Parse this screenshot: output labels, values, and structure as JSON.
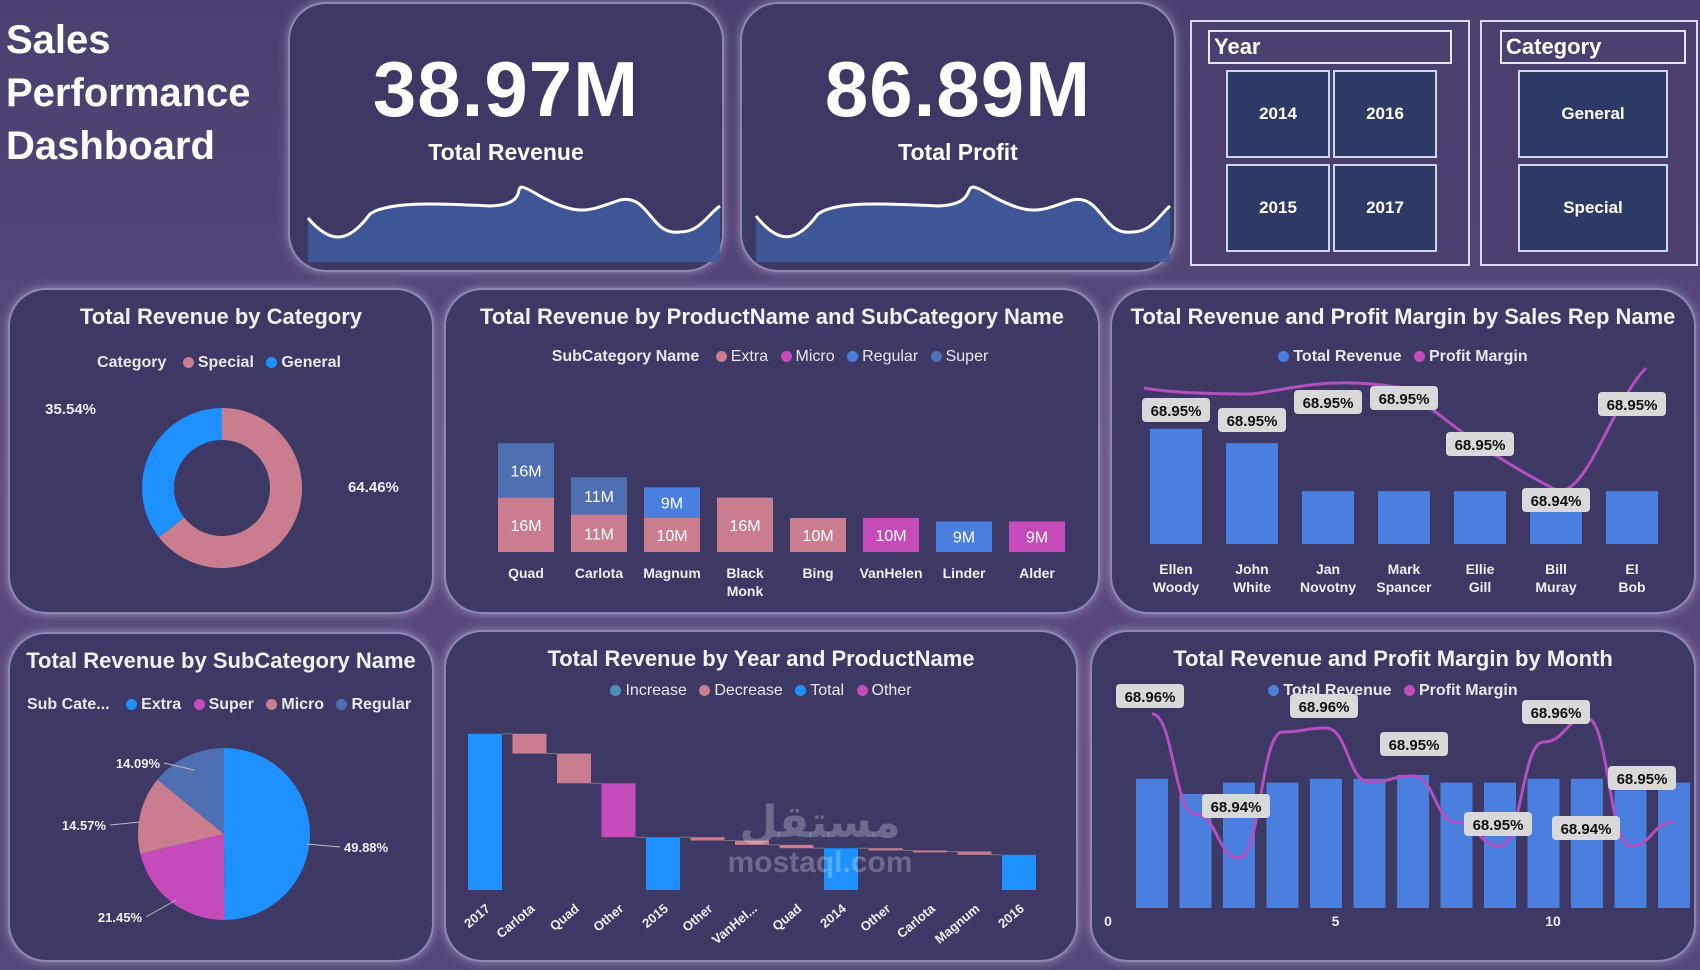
{
  "page_title": [
    "Sales",
    "Performance",
    "Dashboard"
  ],
  "kpis": {
    "revenue": {
      "value": "38.97M",
      "label": "Total Revenue"
    },
    "profit": {
      "value": "86.89M",
      "label": "Total Profit"
    }
  },
  "slicers": {
    "year": {
      "title": "Year",
      "options": [
        "2014",
        "2016",
        "2015",
        "2017"
      ]
    },
    "category": {
      "title": "Category",
      "options": [
        "General",
        "Special"
      ]
    }
  },
  "colors": {
    "bg": "#4a3f6e",
    "card": "#3d3864",
    "blue": "#4a7fe0",
    "bright_blue": "#1e90ff",
    "pink": "#c97d8f",
    "magenta": "#c54bbb",
    "steel": "#4e6fb2",
    "purple_line": "#b34fc0"
  },
  "charts": {
    "category_donut": {
      "title": "Total Revenue by Category",
      "legend_title": "Category",
      "legend": [
        {
          "name": "Special",
          "color": "#c97d8f"
        },
        {
          "name": "General",
          "color": "#1e90ff"
        }
      ]
    },
    "product_sub": {
      "title": "Total Revenue by ProductName and SubCategory Name",
      "legend_title": "SubCategory Name",
      "legend": [
        {
          "name": "Extra",
          "color": "#c97d8f"
        },
        {
          "name": "Micro",
          "color": "#c54bbb"
        },
        {
          "name": "Regular",
          "color": "#4a7fe0"
        },
        {
          "name": "Super",
          "color": "#4e6fb2"
        }
      ]
    },
    "salesrep": {
      "title": "Total Revenue and Profit Margin by Sales Rep Name",
      "legend": [
        {
          "name": "Total Revenue",
          "color": "#4a7fe0"
        },
        {
          "name": "Profit Margin",
          "color": "#c54bbb"
        }
      ]
    },
    "subcat_pie": {
      "title": "Total Revenue by SubCategory Name",
      "legend_title": "Sub Cate...",
      "legend": [
        {
          "name": "Extra",
          "color": "#1e90ff"
        },
        {
          "name": "Super",
          "color": "#c54bbb"
        },
        {
          "name": "Micro",
          "color": "#c97d8f"
        },
        {
          "name": "Regular",
          "color": "#4e6fb2"
        }
      ]
    },
    "waterfall": {
      "title": "Total Revenue by Year and ProductName",
      "legend": [
        {
          "name": "Increase",
          "color": "#4e8fb2"
        },
        {
          "name": "Decrease",
          "color": "#c97d8f"
        },
        {
          "name": "Total",
          "color": "#1e90ff"
        },
        {
          "name": "Other",
          "color": "#c54bbb"
        }
      ]
    },
    "month": {
      "title": "Total Revenue and Profit Margin by Month",
      "legend": [
        {
          "name": "Total Revenue",
          "color": "#4a7fe0"
        },
        {
          "name": "Profit Margin",
          "color": "#c54bbb"
        }
      ]
    }
  },
  "chart_data": [
    {
      "type": "pie",
      "variant": "donut",
      "title": "Total Revenue by Category",
      "slices": [
        {
          "name": "Special",
          "value": 64.46,
          "label": "64.46%"
        },
        {
          "name": "General",
          "value": 35.54,
          "label": "35.54%"
        }
      ]
    },
    {
      "type": "bar",
      "stacked": true,
      "title": "Total Revenue by ProductName and SubCategory Name",
      "categories": [
        "Quad",
        "Carlota",
        "Magnum",
        "Black Monk",
        "Bing",
        "VanHelen",
        "Linder",
        "Alder"
      ],
      "bars": [
        [
          {
            "series": "Extra",
            "value": 16,
            "label": "16M"
          },
          {
            "series": "Super",
            "value": 16,
            "label": "16M"
          }
        ],
        [
          {
            "series": "Extra",
            "value": 11,
            "label": "11M"
          },
          {
            "series": "Super",
            "value": 11,
            "label": "11M"
          }
        ],
        [
          {
            "series": "Extra",
            "value": 10,
            "label": "10M"
          },
          {
            "series": "Regular",
            "value": 9,
            "label": "9M"
          }
        ],
        [
          {
            "series": "Extra",
            "value": 16,
            "label": "16M"
          }
        ],
        [
          {
            "series": "Extra",
            "value": 10,
            "label": "10M"
          }
        ],
        [
          {
            "series": "Micro",
            "value": 10,
            "label": "10M"
          }
        ],
        [
          {
            "series": "Regular",
            "value": 9,
            "label": "9M"
          }
        ],
        [
          {
            "series": "Micro",
            "value": 9,
            "label": "9M"
          }
        ]
      ]
    },
    {
      "type": "bar",
      "combo_line": true,
      "title": "Total Revenue and Profit Margin by Sales Rep Name",
      "categories": [
        "Ellen Woody",
        "John White",
        "Jan Novotny",
        "Mark Spancer",
        "Ellie Gill",
        "Bill Muray",
        "El Bob"
      ],
      "series": [
        {
          "name": "Total Revenue",
          "values": [
            9.6,
            8.4,
            4.4,
            4.4,
            4.4,
            4.3,
            4.4
          ]
        },
        {
          "name": "Profit Margin",
          "values": [
            68.95,
            68.95,
            68.95,
            68.95,
            68.95,
            68.94,
            68.95
          ],
          "labels": [
            "68.95%",
            "68.95%",
            "68.95%",
            "68.95%",
            "68.95%",
            "68.94%",
            "68.95%"
          ]
        }
      ]
    },
    {
      "type": "pie",
      "title": "Total Revenue by SubCategory Name",
      "slices": [
        {
          "name": "Extra",
          "value": 49.88,
          "label": "49.88%"
        },
        {
          "name": "Super",
          "value": 21.45,
          "label": "21.45%"
        },
        {
          "name": "Micro",
          "value": 14.57,
          "label": "14.57%"
        },
        {
          "name": "Regular",
          "value": 14.09,
          "label": "14.09%"
        }
      ]
    },
    {
      "type": "bar",
      "variant": "waterfall",
      "title": "Total Revenue by Year and ProductName",
      "categories": [
        "2017",
        "Carlota",
        "Quad",
        "Other",
        "2015",
        "Other",
        "VanHel...",
        "Quad",
        "2014",
        "Other",
        "Carlota",
        "Magnum",
        "2016"
      ],
      "steps": [
        {
          "kind": "Total",
          "start": 0,
          "end": 14.2
        },
        {
          "kind": "Decrease",
          "start": 14.2,
          "end": 12.4
        },
        {
          "kind": "Decrease",
          "start": 12.4,
          "end": 9.7
        },
        {
          "kind": "Other",
          "start": 9.7,
          "end": 4.8
        },
        {
          "kind": "Total",
          "start": 0,
          "end": 4.8
        },
        {
          "kind": "Decrease",
          "start": 4.8,
          "end": 4.5
        },
        {
          "kind": "Decrease",
          "start": 4.5,
          "end": 4.1
        },
        {
          "kind": "Decrease",
          "start": 4.1,
          "end": 3.8
        },
        {
          "kind": "Total",
          "start": 0,
          "end": 3.8
        },
        {
          "kind": "Decrease",
          "start": 3.8,
          "end": 3.6
        },
        {
          "kind": "Decrease",
          "start": 3.6,
          "end": 3.5
        },
        {
          "kind": "Decrease",
          "start": 3.5,
          "end": 3.2
        },
        {
          "kind": "Total",
          "start": 0,
          "end": 3.2
        }
      ]
    },
    {
      "type": "bar",
      "combo_line": true,
      "title": "Total Revenue and Profit Margin by Month",
      "x": [
        0,
        1,
        2,
        3,
        4,
        5,
        6,
        7,
        8,
        9,
        10,
        11,
        12
      ],
      "x_ticks": [
        0,
        5,
        10
      ],
      "series": [
        {
          "name": "Total Revenue",
          "values": [
            3.4,
            3.0,
            3.3,
            3.3,
            3.4,
            3.4,
            3.5,
            3.3,
            3.3,
            3.4,
            3.4,
            3.1,
            3.3
          ]
        },
        {
          "name": "Profit Margin",
          "values": [
            68.96,
            68.955,
            68.94,
            68.95,
            68.96,
            68.95,
            68.95,
            68.945,
            68.95,
            68.96,
            68.955,
            68.94,
            68.95
          ]
        }
      ],
      "point_labels": [
        {
          "x": 0,
          "label": "68.96%"
        },
        {
          "x": 2,
          "label": "68.94%"
        },
        {
          "x": 4,
          "label": "68.96%"
        },
        {
          "x": 6,
          "label": "68.95%"
        },
        {
          "x": 8,
          "label": "68.95%"
        },
        {
          "x": 9,
          "label": "68.96%"
        },
        {
          "x": 11,
          "label": "68.94%"
        },
        {
          "x": 12,
          "label": "68.95%"
        }
      ]
    }
  ],
  "watermark": {
    "line1": "مستقل",
    "line2": "mostaql.com"
  }
}
